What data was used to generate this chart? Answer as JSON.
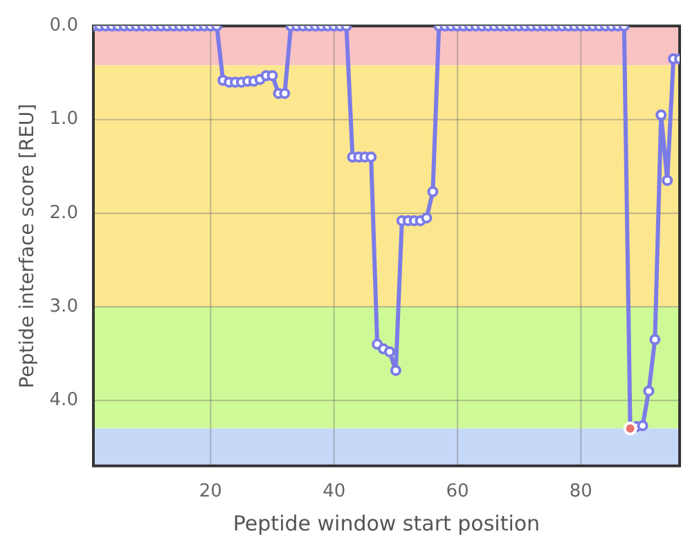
{
  "chart_data": {
    "type": "line",
    "xlabel": "Peptide window start position",
    "ylabel": "Peptide interface score [REU]",
    "xlim": [
      1,
      96
    ],
    "xticks": [
      20,
      40,
      60,
      80
    ],
    "ylim": [
      4.7,
      0
    ],
    "yticks": [
      {
        "value": 0,
        "label": "0.0"
      },
      {
        "value": 1,
        "label": "1.0"
      },
      {
        "value": 2,
        "label": "2.0"
      },
      {
        "value": 3,
        "label": "3.0"
      },
      {
        "value": 4,
        "label": "4.0"
      }
    ],
    "grid": true,
    "legend": false,
    "marker": "circle",
    "line_style": "solid",
    "bands": [
      {
        "axis": "y",
        "from": 0,
        "to": 0.42,
        "color": "#f9c3c3"
      },
      {
        "axis": "y",
        "from": 0.42,
        "to": 3,
        "color": "#fce78e"
      },
      {
        "axis": "y",
        "from": 3,
        "to": 4.3,
        "color": "#cdfa96"
      },
      {
        "axis": "y",
        "from": 4.3,
        "to": 4.7,
        "color": "#c6d8f8"
      }
    ],
    "series": [
      {
        "type": "line",
        "color": "#7b7be8",
        "x": [
          1,
          2,
          3,
          4,
          5,
          6,
          7,
          8,
          9,
          10,
          11,
          12,
          13,
          14,
          15,
          16,
          17,
          18,
          19,
          20,
          21,
          22,
          23,
          24,
          25,
          26,
          27,
          28,
          29,
          30,
          31,
          32,
          33,
          34,
          35,
          36,
          37,
          38,
          39,
          40,
          41,
          42,
          43,
          44,
          45,
          46,
          47,
          48,
          49,
          50,
          51,
          52,
          53,
          54,
          55,
          56,
          57,
          58,
          59,
          60,
          61,
          62,
          63,
          64,
          65,
          66,
          67,
          68,
          69,
          70,
          71,
          72,
          73,
          74,
          75,
          76,
          77,
          78,
          79,
          80,
          81,
          82,
          83,
          84,
          85,
          86,
          87,
          88,
          89,
          90,
          91,
          92,
          93,
          94,
          95,
          96
        ],
        "values": [
          0,
          0,
          0,
          0,
          0,
          0,
          0,
          0,
          0,
          0,
          0,
          0,
          0,
          0,
          0,
          0,
          0,
          0,
          0,
          0,
          0,
          0.58,
          0.6,
          0.6,
          0.6,
          0.59,
          0.59,
          0.57,
          0.53,
          0.53,
          0.72,
          0.72,
          0,
          0,
          0,
          0,
          0,
          0,
          0,
          0,
          0,
          0,
          1.4,
          1.4,
          1.4,
          1.4,
          3.4,
          3.45,
          3.48,
          3.68,
          2.08,
          2.08,
          2.08,
          2.08,
          2.05,
          1.77,
          0,
          0,
          0,
          0,
          0,
          0,
          0,
          0,
          0,
          0,
          0,
          0,
          0,
          0,
          0,
          0,
          0,
          0,
          0,
          0,
          0,
          0,
          0,
          0,
          0,
          0,
          0,
          0,
          0,
          0,
          0,
          4.3,
          4.28,
          4.27,
          3.9,
          3.35,
          0.95,
          1.65,
          0.35,
          0.35
        ]
      },
      {
        "type": "scatter",
        "color": "#e87070",
        "x": [
          88
        ],
        "values": [
          4.3
        ]
      }
    ]
  }
}
